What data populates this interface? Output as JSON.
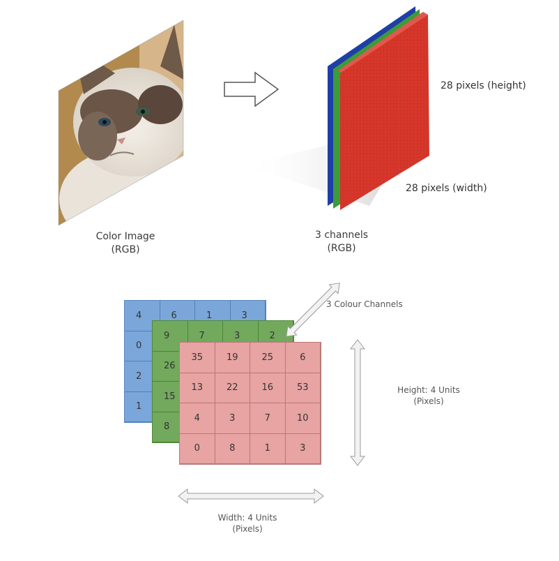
{
  "top": {
    "image_caption": [
      "Color Image",
      "(RGB)"
    ],
    "channels_caption": [
      "3 channels",
      "(RGB)"
    ],
    "height_label": "28 pixels (height)",
    "width_label": "28 pixels (width)"
  },
  "bottom": {
    "channels_label": "3 Colour Channels",
    "height_label": [
      "Height: 4 Units",
      "(Pixels)"
    ],
    "width_label": [
      "Width: 4 Units",
      "(Pixels)"
    ]
  },
  "grids": {
    "blue": [
      "4",
      "6",
      "1",
      "3",
      "0",
      "",
      "",
      "",
      "2",
      "",
      "",
      "",
      "1",
      "",
      "",
      ""
    ],
    "green": [
      "9",
      "7",
      "3",
      "2",
      "26",
      "",
      "",
      "",
      "15",
      "",
      "",
      "",
      "8",
      "",
      "",
      ""
    ],
    "red": [
      "35",
      "19",
      "25",
      "6",
      "13",
      "22",
      "16",
      "53",
      "4",
      "3",
      "7",
      "10",
      "0",
      "8",
      "1",
      "3"
    ]
  },
  "colors": {
    "blue": "#7ba6d9",
    "green": "#72a95c",
    "red": "#e8a3a3",
    "tensor_red": "#d8372b"
  }
}
